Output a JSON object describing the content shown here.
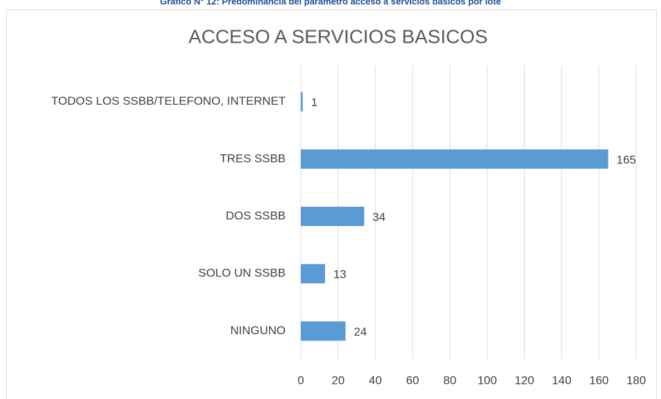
{
  "caption": "Gráfico N° 12: Predominancia del parámetro acceso a servicios básicos por lote",
  "chart_data": {
    "type": "barh",
    "title": "ACCESO A SERVICIOS BASICOS",
    "categories": [
      "TODOS LOS SSBB/TELEFONO, INTERNET",
      "TRES SSBB",
      "DOS SSBB",
      "SOLO UN SSBB",
      "NINGUNO"
    ],
    "values": [
      1,
      165,
      34,
      13,
      24
    ],
    "color": "#5b9bd5",
    "xlim": [
      0,
      180
    ],
    "xticks": [
      0,
      20,
      40,
      60,
      80,
      100,
      120,
      140,
      160,
      180
    ],
    "grid": true
  }
}
